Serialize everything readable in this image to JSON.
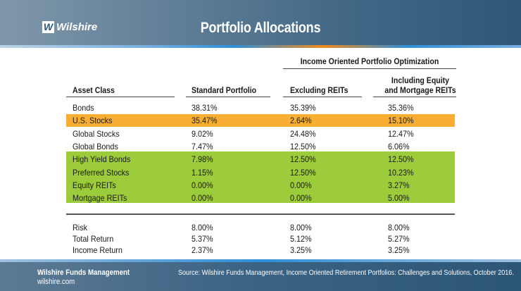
{
  "header": {
    "logo_mark": "W",
    "logo_text": "Wilshire",
    "title": "Portfolio Allocations"
  },
  "table": {
    "group_header": "Income Oriented Portfolio Optimization",
    "columns": {
      "asset_class": "Asset Class",
      "standard": "Standard Portfolio",
      "excluding": "Excluding REITs",
      "including_line1": "Including Equity",
      "including_line2": "and Mortgage REITs"
    },
    "rows": [
      {
        "name": "Bonds",
        "standard": "38.31%",
        "excluding": "35.39%",
        "including": "35.36%",
        "highlight": "none"
      },
      {
        "name": "U.S. Stocks",
        "standard": "35.47%",
        "excluding": "2.64%",
        "including": "15.10%",
        "highlight": "orange"
      },
      {
        "name": "Global Stocks",
        "standard": "9.02%",
        "excluding": "24.48%",
        "including": "12.47%",
        "highlight": "none"
      },
      {
        "name": "Global Bonds",
        "standard": "7.47%",
        "excluding": "12.50%",
        "including": "6.06%",
        "highlight": "none"
      },
      {
        "name": "High Yield Bonds",
        "standard": "7.98%",
        "excluding": "12.50%",
        "including": "12.50%",
        "highlight": "green"
      },
      {
        "name": "Preferred Stocks",
        "standard": "1.15%",
        "excluding": "12.50%",
        "including": "10.23%",
        "highlight": "green"
      },
      {
        "name": "Equity REITs",
        "standard": "0.00%",
        "excluding": "0.00%",
        "including": "3.27%",
        "highlight": "green"
      },
      {
        "name": "Mortgage REITs",
        "standard": "0.00%",
        "excluding": "0.00%",
        "including": "5.00%",
        "highlight": "green"
      }
    ],
    "stats": [
      {
        "name": "Risk",
        "standard": "8.00%",
        "excluding": "8.00%",
        "including": "8.00%"
      },
      {
        "name": "Total Return",
        "standard": "5.37%",
        "excluding": "5.12%",
        "including": "5.27%"
      },
      {
        "name": "Income Return",
        "standard": "2.37%",
        "excluding": "3.25%",
        "including": "3.25%"
      }
    ]
  },
  "footer": {
    "company": "Wilshire Funds Management",
    "website": "wilshire.com",
    "source": "Source: Wilshire Funds Management, Income Oriented Retirement Portfolios: Challenges and Solutions, October 2016."
  },
  "colors": {
    "orange_highlight": "#f7ae33",
    "green_highlight": "#9ccb3b",
    "header_blue": "#2f5876"
  }
}
